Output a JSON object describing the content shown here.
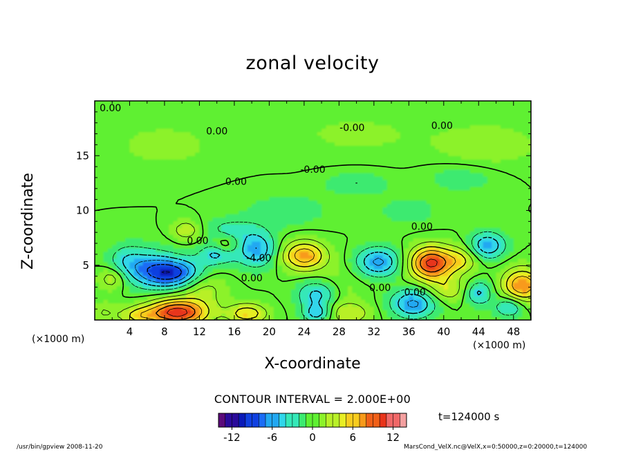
{
  "chart_data": {
    "type": "heatmap",
    "title": "zonal velocity",
    "xlabel": "X-coordinate",
    "ylabel": "Z-coordinate",
    "x_unit": "(×1000 m)",
    "y_unit": "(×1000 m)",
    "xlim": [
      0,
      50
    ],
    "ylim": [
      0,
      20
    ],
    "x_ticks": [
      4,
      8,
      12,
      16,
      20,
      24,
      28,
      32,
      36,
      40,
      44,
      48
    ],
    "y_ticks": [
      5,
      10,
      15
    ],
    "contour_interval_text": "CONTOUR INTERVAL = 2.000E+00",
    "time_text": "t=124000 s",
    "contour_labels": [
      {
        "text": "0.00",
        "x": 1.8,
        "z": 19.3
      },
      {
        "text": "0.00",
        "x": 14.0,
        "z": 17.2
      },
      {
        "text": "-0.00",
        "x": 29.5,
        "z": 17.5
      },
      {
        "text": "0.00",
        "x": 39.8,
        "z": 17.7
      },
      {
        "text": "-0.00",
        "x": 25.0,
        "z": 13.7
      },
      {
        "text": "0.00",
        "x": 16.2,
        "z": 12.6
      },
      {
        "text": "0.00",
        "x": 37.5,
        "z": 8.5
      },
      {
        "text": "0.00",
        "x": 11.8,
        "z": 7.2
      },
      {
        "text": "-4.00",
        "x": 18.8,
        "z": 5.6
      },
      {
        "text": "0.00",
        "x": 18.0,
        "z": 3.8
      },
      {
        "text": "0.00",
        "x": 32.7,
        "z": 2.9
      },
      {
        "text": "0.00",
        "x": 36.7,
        "z": 2.5
      }
    ],
    "colorbar": {
      "min": -14,
      "max": 14,
      "tick_labels": [
        "-12",
        "-6",
        "0",
        "6",
        "12"
      ],
      "tick_values": [
        -12,
        -6,
        0,
        6,
        12
      ],
      "colors": [
        "#5a0a7a",
        "#2a0a9a",
        "#0a1ab8",
        "#1040e0",
        "#1a6cf5",
        "#22a8f2",
        "#30d6ea",
        "#34e8b8",
        "#3cea70",
        "#5ef032",
        "#8cf22a",
        "#b8f028",
        "#e8ee24",
        "#f8cc1e",
        "#f89a1a",
        "#f06018",
        "#e8341a",
        "#f06868",
        "#f4a0a0"
      ]
    }
  },
  "footer": {
    "left": "/usr/bin/gpview   2008-11-20",
    "right": "MarsCond_VelX.nc@VelX,x=0:50000,z=0:20000,t=124000"
  }
}
